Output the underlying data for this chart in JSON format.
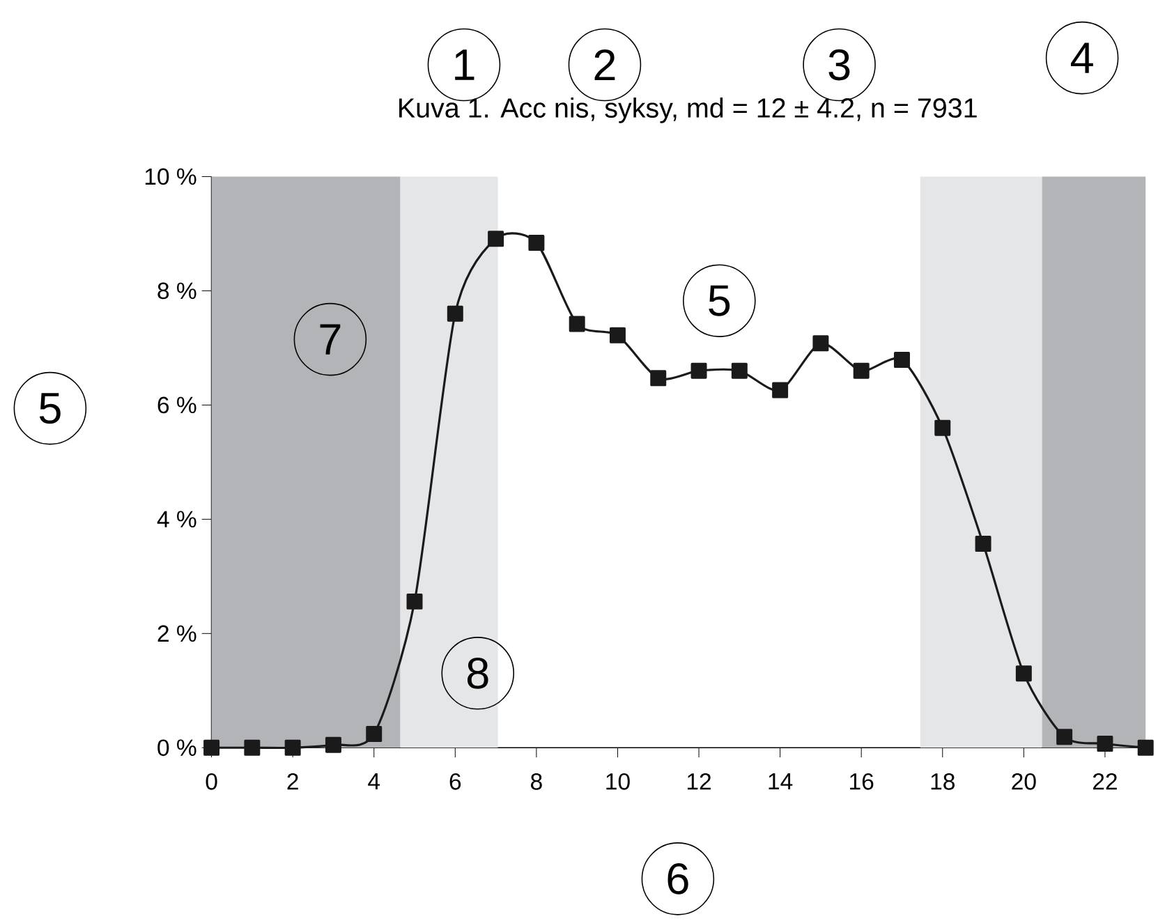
{
  "chart_data": {
    "type": "line",
    "title": "Kuva 1. Acc nis, syksy, md = 12 ± 4.2, n = 7931",
    "xlabel": "6",
    "ylabel": "5",
    "x": [
      0,
      1,
      2,
      3,
      4,
      5,
      6,
      7,
      8,
      9,
      10,
      11,
      12,
      13,
      14,
      15,
      16,
      17,
      18,
      19,
      20,
      21,
      22,
      23
    ],
    "series": [
      {
        "color": "#1a1a1a",
        "values": [
          0,
          0,
          0,
          0.05,
          0.24,
          2.56,
          7.6,
          8.91,
          8.84,
          7.42,
          7.22,
          6.47,
          6.6,
          6.6,
          6.26,
          7.08,
          6.6,
          6.79,
          5.6,
          3.57,
          1.3,
          0.19,
          0.07,
          0
        ]
      }
    ],
    "xlim": [
      0,
      23
    ],
    "ylim": [
      0,
      10
    ],
    "xticks": [
      0,
      2,
      4,
      6,
      8,
      10,
      12,
      14,
      16,
      18,
      20,
      22
    ],
    "yticks": [
      {
        "value": 0,
        "label": "0 %"
      },
      {
        "value": 2,
        "label": "2 %"
      },
      {
        "value": 4,
        "label": "4 %"
      },
      {
        "value": 6,
        "label": "6 %"
      },
      {
        "value": 8,
        "label": "8 %"
      },
      {
        "value": 10,
        "label": "10 %"
      }
    ],
    "bands": [
      {
        "axis": "x",
        "from": 0,
        "to": 4.65,
        "color": "#b3b4b7"
      },
      {
        "axis": "x",
        "from": 4.65,
        "to": 7.05,
        "color": "#e5e6e8"
      },
      {
        "axis": "x",
        "from": 17.45,
        "to": 20.45,
        "color": "#e5e6e8"
      },
      {
        "axis": "x",
        "from": 20.45,
        "to": 23,
        "color": "#b3b4b7"
      }
    ],
    "annotations": [
      "1",
      "2",
      "3",
      "4",
      "5",
      "7",
      "8"
    ],
    "marker": "square",
    "line_style": "solid"
  }
}
